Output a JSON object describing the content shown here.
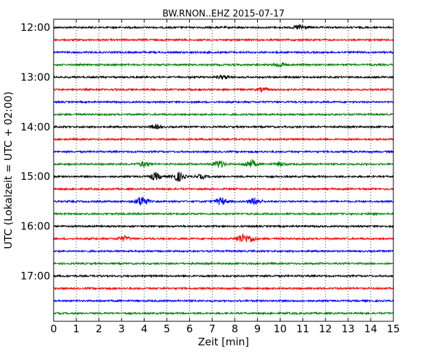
{
  "chart_data": {
    "type": "line",
    "title": "BW.RNON..EHZ 2015-07-17",
    "xlabel": "Zeit  [min]",
    "ylabel": "UTC (Lokalzeit = UTC + 02:00)",
    "xlim": [
      0,
      15
    ],
    "x_ticks": [
      "0",
      "1",
      "2",
      "3",
      "4",
      "5",
      "6",
      "7",
      "8",
      "9",
      "10",
      "11",
      "12",
      "13",
      "14",
      "15"
    ],
    "y_ticks": [
      "12:00",
      "13:00",
      "14:00",
      "15:00",
      "16:00",
      "17:00"
    ],
    "grid": "vertical dotted",
    "trace_interval_minutes": 15,
    "colors": [
      "#000000",
      "#ff0000",
      "#0000ff",
      "#008000"
    ],
    "series": [
      {
        "start": "12:00",
        "events": [
          {
            "t": 10.9,
            "amp": 0.5
          }
        ]
      },
      {
        "start": "12:15",
        "events": []
      },
      {
        "start": "12:30",
        "events": []
      },
      {
        "start": "12:45",
        "events": [
          {
            "t": 10.0,
            "amp": 0.4
          }
        ]
      },
      {
        "start": "13:00",
        "events": [
          {
            "t": 7.5,
            "amp": 0.3
          }
        ]
      },
      {
        "start": "13:15",
        "events": [
          {
            "t": 9.2,
            "amp": 0.3
          }
        ]
      },
      {
        "start": "13:30",
        "events": []
      },
      {
        "start": "13:45",
        "events": []
      },
      {
        "start": "14:00",
        "events": [
          {
            "t": 4.5,
            "amp": 0.3
          }
        ]
      },
      {
        "start": "14:15",
        "events": []
      },
      {
        "start": "14:30",
        "events": []
      },
      {
        "start": "14:45",
        "events": [
          {
            "t": 7.3,
            "amp": 0.6
          },
          {
            "t": 8.7,
            "amp": 0.7
          },
          {
            "t": 4.0,
            "amp": 0.4
          },
          {
            "t": 10.0,
            "amp": 0.3
          }
        ]
      },
      {
        "start": "15:00",
        "events": [
          {
            "t": 4.5,
            "amp": 0.6
          },
          {
            "t": 5.5,
            "amp": 0.8
          },
          {
            "t": 6.5,
            "amp": 0.3
          }
        ]
      },
      {
        "start": "15:15",
        "events": []
      },
      {
        "start": "15:30",
        "events": [
          {
            "t": 3.9,
            "amp": 0.9
          },
          {
            "t": 7.4,
            "amp": 0.6
          },
          {
            "t": 8.9,
            "amp": 0.6
          }
        ]
      },
      {
        "start": "15:45",
        "events": []
      },
      {
        "start": "16:00",
        "events": []
      },
      {
        "start": "16:15",
        "events": [
          {
            "t": 3.1,
            "amp": 0.4
          },
          {
            "t": 8.3,
            "amp": 0.7
          },
          {
            "t": 8.7,
            "amp": 0.5
          }
        ]
      },
      {
        "start": "16:30",
        "events": []
      },
      {
        "start": "16:45",
        "events": []
      },
      {
        "start": "17:00",
        "events": []
      },
      {
        "start": "17:15",
        "events": []
      },
      {
        "start": "17:30",
        "events": []
      },
      {
        "start": "17:45",
        "events": []
      }
    ]
  }
}
